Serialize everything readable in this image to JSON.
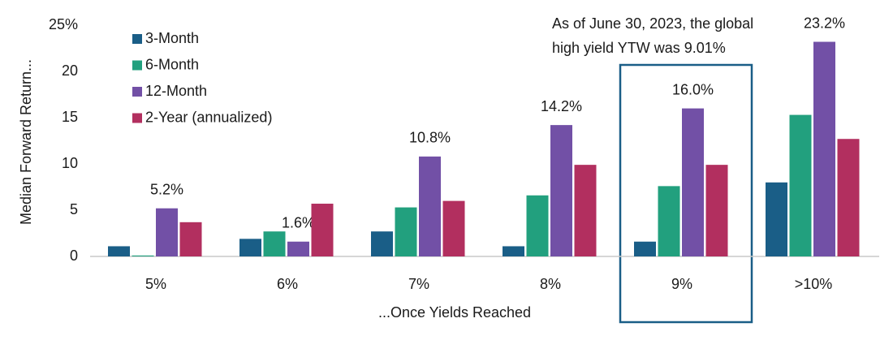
{
  "chart_data": {
    "type": "bar",
    "x_label": "...Once Yields Reached",
    "y_label": "Median Forward Return...",
    "annotation": [
      "As of June 30, 2023, the global",
      "high yield YTW was 9.01%"
    ],
    "categories": [
      "5%",
      "6%",
      "7%",
      "8%",
      "9%",
      ">10%"
    ],
    "series": [
      {
        "name": "3-Month",
        "color": "#1a5e87",
        "values": [
          1.1,
          1.9,
          2.7,
          1.1,
          1.6,
          8.0
        ]
      },
      {
        "name": "6-Month",
        "color": "#22a07e",
        "values": [
          0.1,
          2.7,
          5.3,
          6.6,
          7.6,
          15.3
        ]
      },
      {
        "name": "12-Month",
        "color": "#7250a6",
        "values": [
          5.2,
          1.6,
          10.8,
          14.2,
          16.0,
          23.2
        ],
        "value_labels": [
          "5.2%",
          "1.6%",
          "10.8%",
          "14.2%",
          "16.0%",
          "23.2%"
        ]
      },
      {
        "name": "2-Year (annualized)",
        "color": "#b22f5f",
        "values": [
          3.7,
          5.7,
          6.0,
          9.9,
          9.9,
          12.7
        ]
      }
    ],
    "ylim": [
      0,
      25
    ],
    "yticks": [
      0,
      5,
      10,
      15,
      20,
      {
        "value": 25,
        "label": "25%"
      }
    ],
    "grid": false
  }
}
